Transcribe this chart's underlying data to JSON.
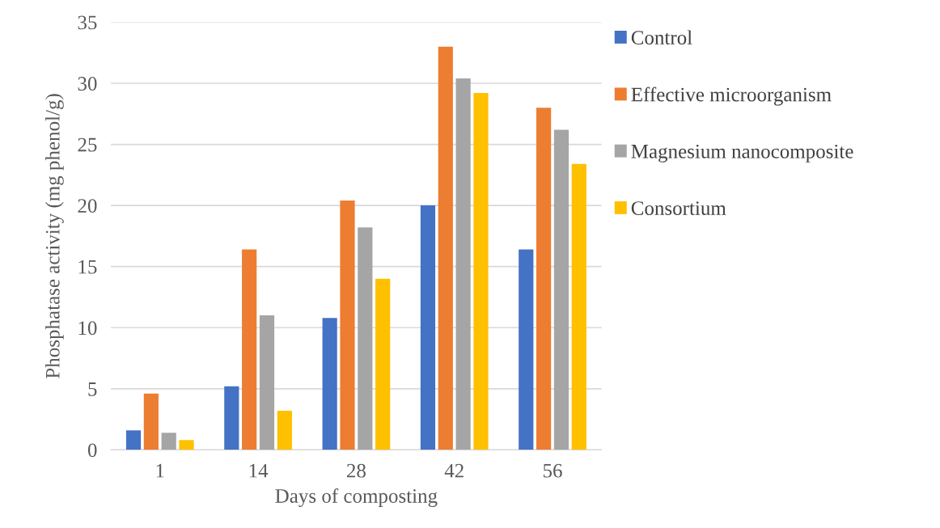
{
  "chart_data": {
    "type": "bar",
    "xlabel": "Days of composting",
    "ylabel": "Phosphatase activity (mg phenol/g)",
    "categories": [
      "1",
      "14",
      "28",
      "42",
      "56"
    ],
    "series": [
      {
        "name": "Control",
        "color": "#4472c4",
        "values": [
          1.6,
          5.2,
          10.8,
          20,
          16.4
        ]
      },
      {
        "name": "Effective microorganism",
        "color": "#ed7d31",
        "values": [
          4.6,
          16.4,
          20.4,
          33,
          28
        ]
      },
      {
        "name": "Magnesium nanocomposite",
        "color": "#a5a5a5",
        "values": [
          1.4,
          11,
          18.2,
          30.4,
          26.2
        ]
      },
      {
        "name": "Consortium",
        "color": "#ffc000",
        "values": [
          0.8,
          3.2,
          14,
          29.2,
          23.4
        ]
      }
    ],
    "ylim": [
      0,
      35
    ],
    "yticks": [
      0,
      5,
      10,
      15,
      20,
      25,
      30,
      35
    ],
    "grid": "y",
    "legend": "right"
  }
}
